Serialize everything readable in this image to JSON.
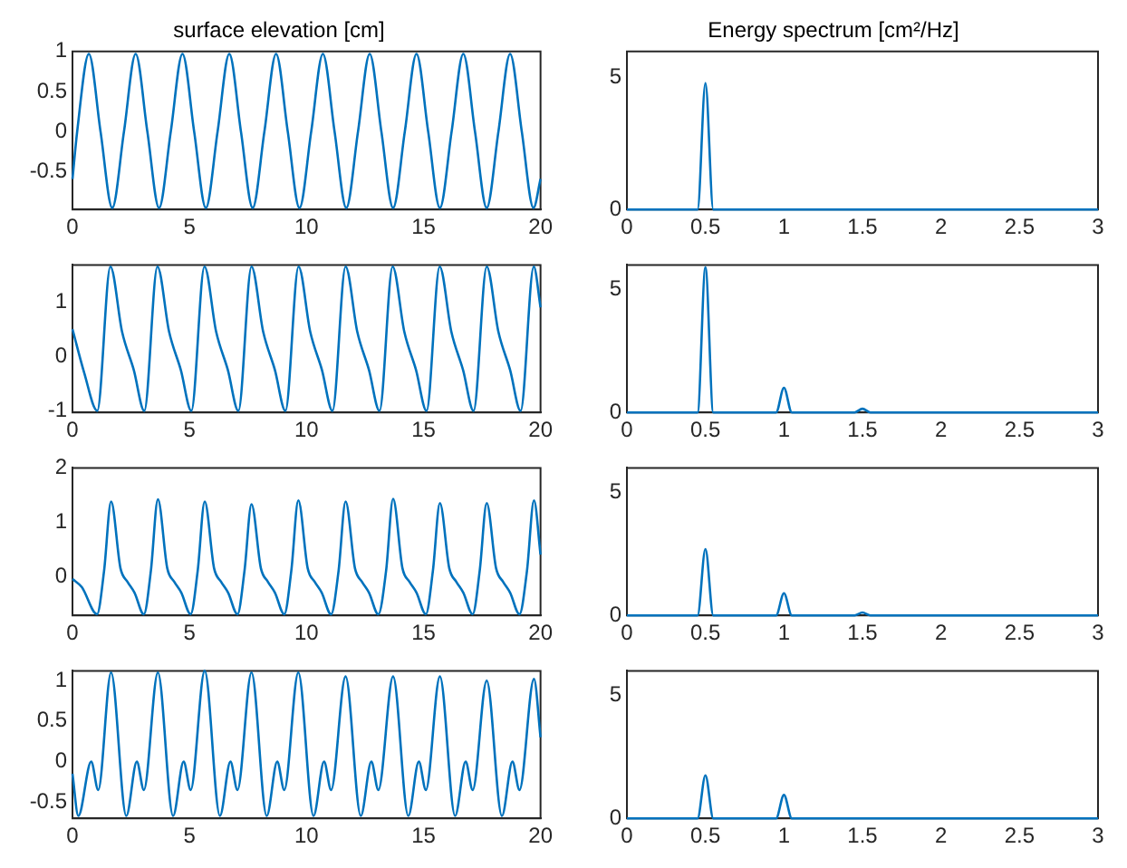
{
  "chart_data": [
    {
      "type": "line",
      "title": "surface elevation [cm]",
      "xlim": [
        0,
        20
      ],
      "xticks": [
        0,
        5,
        10,
        15,
        20
      ],
      "ylim": [
        -0.97,
        1
      ],
      "yticks": [
        -0.5,
        0,
        0.5,
        1
      ],
      "series": [
        {
          "color": "#0072bd",
          "x": [
            0,
            0.2,
            0.7,
            1.2,
            1.7,
            2.2,
            2.7,
            3.2,
            3.7,
            4.2,
            4.7,
            5.2,
            5.7,
            6.2,
            6.7,
            7.2,
            7.7,
            8.2,
            8.7,
            9.2,
            9.7,
            10.2,
            10.7,
            11.2,
            11.7,
            12.2,
            12.7,
            13.2,
            13.7,
            14.2,
            14.7,
            15.2,
            15.7,
            16.2,
            16.7,
            17.2,
            17.7,
            18.2,
            18.7,
            19.2,
            19.7,
            20
          ],
          "values": [
            -0.59,
            0,
            0.97,
            0,
            -0.95,
            0,
            0.97,
            0,
            -0.95,
            0,
            0.97,
            0,
            -0.95,
            0,
            0.97,
            0,
            -0.95,
            0,
            0.97,
            0,
            -0.95,
            0,
            0.97,
            0,
            -0.95,
            0,
            0.97,
            0,
            -0.95,
            0,
            0.97,
            0,
            -0.95,
            0,
            0.97,
            0,
            -0.95,
            0,
            0.97,
            0,
            -0.95,
            -0.59
          ]
        }
      ]
    },
    {
      "type": "line",
      "title": "Energy spectrum [cm²/Hz]",
      "xlim": [
        0,
        3
      ],
      "xticks": [
        0,
        0.5,
        1,
        1.5,
        2,
        2.5,
        3
      ],
      "ylim": [
        0,
        6
      ],
      "yticks": [
        0,
        5
      ],
      "series": [
        {
          "color": "#0072bd",
          "x": [
            0,
            0.45,
            0.5,
            0.55,
            0.95,
            1,
            1.05,
            1.45,
            1.5,
            1.55,
            3
          ],
          "values": [
            0,
            0,
            4.8,
            0,
            0,
            0,
            0,
            0,
            0,
            0,
            0
          ]
        }
      ]
    },
    {
      "type": "line",
      "xlim": [
        0,
        20
      ],
      "xticks": [
        0,
        5,
        10,
        15,
        20
      ],
      "ylim": [
        -1.03,
        1.68
      ],
      "yticks": [
        -1,
        0,
        1
      ],
      "series": [
        {
          "color": "#0072bd",
          "x": [
            0,
            0.5,
            1.06,
            1.62,
            2.12,
            2.62,
            3.07,
            3.63,
            4.13,
            4.63,
            5.08,
            5.64,
            6.14,
            6.64,
            7.09,
            7.65,
            8.15,
            8.65,
            9.1,
            9.66,
            10.16,
            10.66,
            11.11,
            11.67,
            12.17,
            12.67,
            13.12,
            13.68,
            14.18,
            14.68,
            15.13,
            15.69,
            16.19,
            16.69,
            17.14,
            17.7,
            18.2,
            18.7,
            19.15,
            19.71,
            20
          ],
          "values": [
            0.5,
            -0.3,
            -1,
            1.65,
            0.45,
            -0.25,
            -1,
            1.65,
            0.45,
            -0.25,
            -1,
            1.65,
            0.45,
            -0.25,
            -1,
            1.65,
            0.45,
            -0.25,
            -1,
            1.65,
            0.45,
            -0.25,
            -1,
            1.65,
            0.45,
            -0.25,
            -1,
            1.65,
            0.45,
            -0.25,
            -1,
            1.65,
            0.45,
            -0.25,
            -1,
            1.65,
            0.45,
            -0.25,
            -1,
            1.65,
            0.9
          ]
        }
      ]
    },
    {
      "type": "line",
      "xlim": [
        0,
        3
      ],
      "xticks": [
        0,
        0.5,
        1,
        1.5,
        2,
        2.5,
        3
      ],
      "ylim": [
        0,
        6
      ],
      "yticks": [
        0,
        5
      ],
      "series": [
        {
          "color": "#0072bd",
          "x": [
            0,
            0.45,
            0.5,
            0.55,
            0.95,
            1,
            1.05,
            1.45,
            1.5,
            1.55,
            3
          ],
          "values": [
            0,
            0,
            5.9,
            0,
            0,
            1,
            0,
            0,
            0.15,
            0,
            0
          ]
        }
      ]
    },
    {
      "type": "line",
      "xlim": [
        0,
        20
      ],
      "xticks": [
        0,
        5,
        10,
        15,
        20
      ],
      "ylim": [
        -0.72,
        2
      ],
      "yticks": [
        0,
        1,
        2
      ],
      "series": [
        {
          "color": "#0072bd",
          "x": [
            0,
            0.4,
            1.05,
            1.35,
            1.65,
            2.05,
            2.35,
            2.65,
            3.05,
            3.35,
            3.65,
            4.05,
            4.35,
            4.65,
            5.05,
            5.35,
            5.65,
            6.05,
            6.35,
            6.65,
            7.05,
            7.35,
            7.65,
            8.05,
            8.35,
            8.65,
            9.05,
            9.35,
            9.65,
            10.05,
            10.35,
            10.65,
            11.05,
            11.37,
            11.67,
            12.07,
            12.37,
            12.67,
            13.07,
            13.4,
            13.7,
            14.1,
            14.4,
            14.7,
            15.1,
            15.4,
            15.7,
            16.1,
            16.4,
            16.7,
            17.1,
            17.4,
            17.7,
            18.1,
            18.4,
            18.7,
            19.1,
            19.42,
            19.72,
            20
          ],
          "values": [
            -0.05,
            -0.2,
            -0.7,
            0.1,
            1.38,
            0.15,
            -0.1,
            -0.3,
            -0.7,
            0.1,
            1.42,
            0.15,
            -0.1,
            -0.3,
            -0.7,
            0.1,
            1.38,
            0.15,
            -0.1,
            -0.3,
            -0.7,
            0.1,
            1.33,
            0.15,
            -0.1,
            -0.3,
            -0.7,
            0.1,
            1.4,
            0.15,
            -0.1,
            -0.3,
            -0.7,
            0.1,
            1.38,
            0.15,
            -0.1,
            -0.3,
            -0.7,
            0.1,
            1.43,
            0.15,
            -0.1,
            -0.3,
            -0.7,
            0.1,
            1.35,
            0.15,
            -0.1,
            -0.3,
            -0.7,
            0.1,
            1.35,
            0.15,
            -0.1,
            -0.3,
            -0.7,
            0.1,
            1.4,
            0.4
          ]
        }
      ]
    },
    {
      "type": "line",
      "xlim": [
        0,
        3
      ],
      "xticks": [
        0,
        0.5,
        1,
        1.5,
        2,
        2.5,
        3
      ],
      "ylim": [
        0,
        6
      ],
      "yticks": [
        0,
        5
      ],
      "series": [
        {
          "color": "#0072bd",
          "x": [
            0,
            0.45,
            0.5,
            0.55,
            0.95,
            1,
            1.05,
            1.45,
            1.5,
            1.55,
            3
          ],
          "values": [
            0,
            0,
            2.7,
            0,
            0,
            0.9,
            0,
            0,
            0.12,
            0,
            0
          ]
        }
      ]
    },
    {
      "type": "line",
      "xlim": [
        0,
        20
      ],
      "xticks": [
        0,
        5,
        10,
        15,
        20
      ],
      "ylim": [
        -0.7,
        1.12
      ],
      "yticks": [
        -0.5,
        0,
        0.5,
        1
      ],
      "series": [
        {
          "color": "#0072bd",
          "x": [
            0,
            0.25,
            0.8,
            1.1,
            1.65,
            2.3,
            2.75,
            3.05,
            3.65,
            4.3,
            4.75,
            5.05,
            5.65,
            6.3,
            6.75,
            7.05,
            7.65,
            8.3,
            8.75,
            9.05,
            9.65,
            10.3,
            10.75,
            11.05,
            11.67,
            12.32,
            12.77,
            13.07,
            13.7,
            14.35,
            14.8,
            15.1,
            15.7,
            16.35,
            16.8,
            17.1,
            17.7,
            18.35,
            18.8,
            19.1,
            19.72,
            20
          ],
          "values": [
            -0.15,
            -0.67,
            0,
            -0.35,
            1.1,
            -0.67,
            0,
            -0.35,
            1.1,
            -0.67,
            0,
            -0.35,
            1.12,
            -0.67,
            0,
            -0.35,
            1.1,
            -0.67,
            0,
            -0.35,
            1.1,
            -0.67,
            0,
            -0.35,
            1.05,
            -0.67,
            0,
            -0.35,
            1.05,
            -0.67,
            0,
            -0.35,
            1.05,
            -0.67,
            0,
            -0.35,
            1,
            -0.67,
            0,
            -0.35,
            1.02,
            0.3
          ]
        }
      ]
    },
    {
      "type": "line",
      "xlim": [
        0,
        3
      ],
      "xticks": [
        0,
        0.5,
        1,
        1.5,
        2,
        2.5,
        3
      ],
      "ylim": [
        0,
        6
      ],
      "yticks": [
        0,
        5
      ],
      "series": [
        {
          "color": "#0072bd",
          "x": [
            0,
            0.45,
            0.5,
            0.55,
            0.95,
            1,
            1.05,
            1.45,
            1.5,
            1.55,
            3
          ],
          "values": [
            0,
            0,
            1.75,
            0,
            0,
            0.95,
            0,
            0,
            0,
            0,
            0
          ]
        }
      ]
    }
  ]
}
